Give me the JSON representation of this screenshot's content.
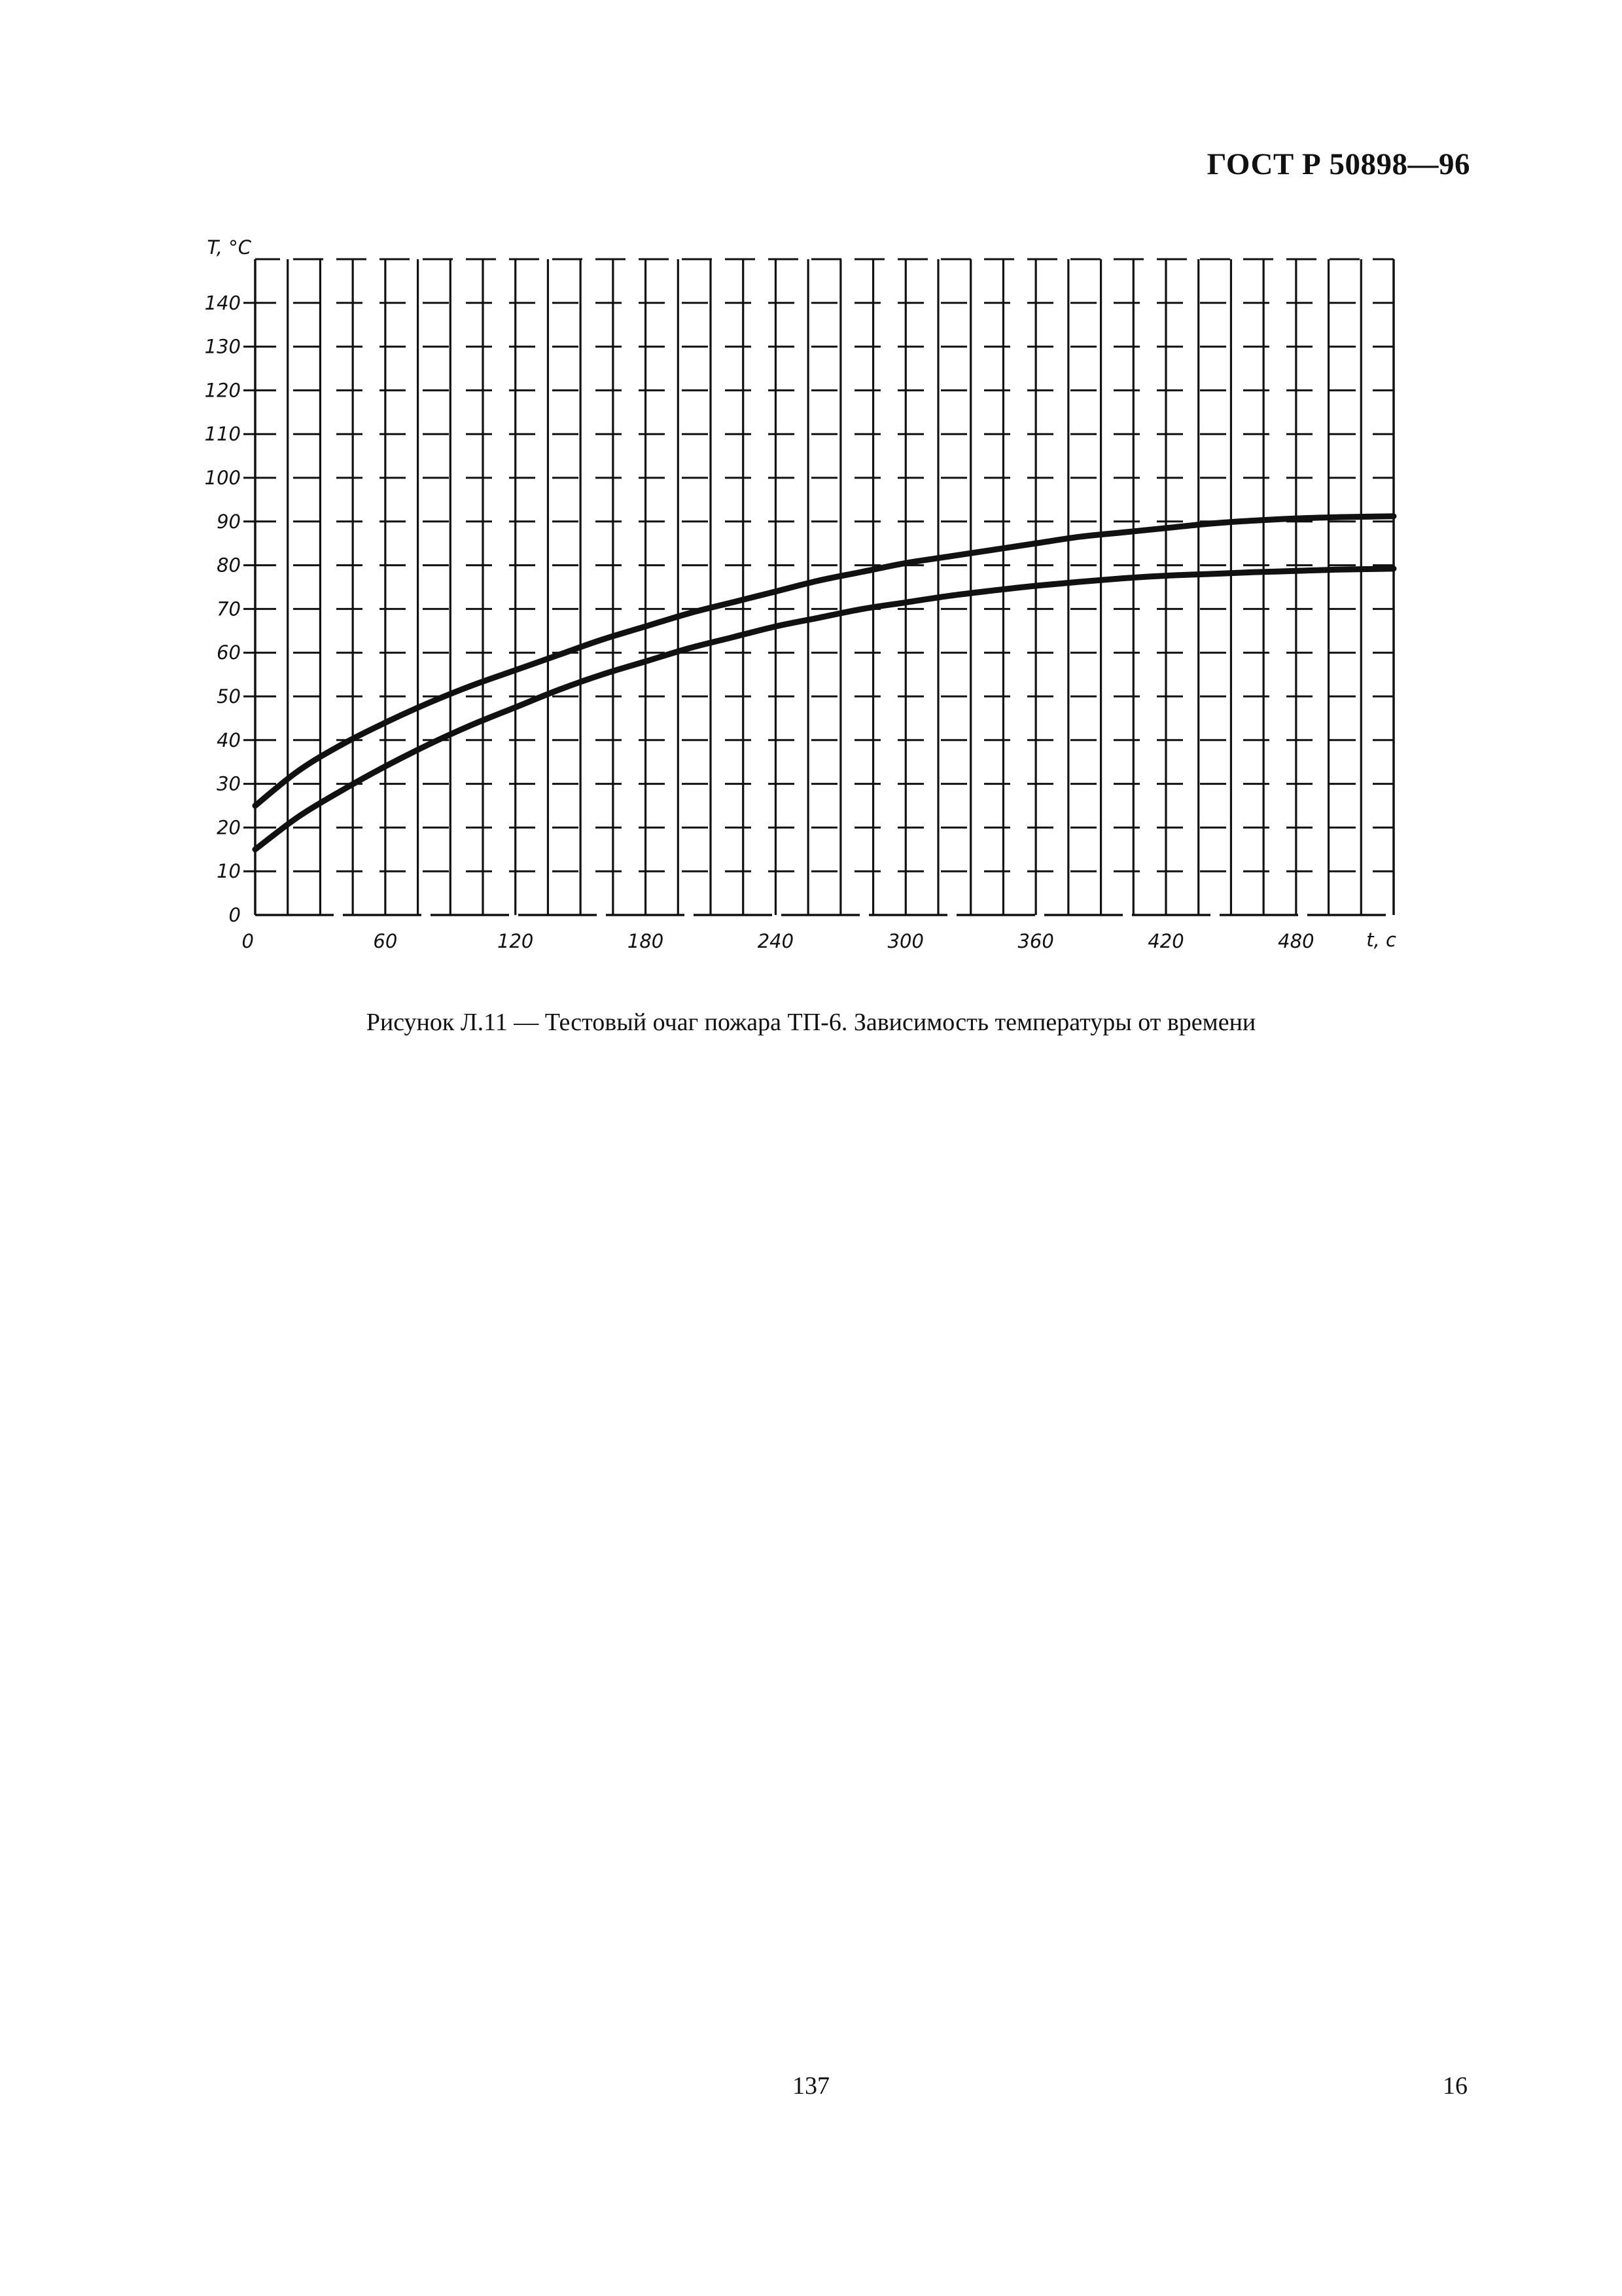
{
  "header": {
    "document_id": "ГОСТ Р 50898—96"
  },
  "figure": {
    "caption": "Рисунок Л.11 — Тестовый очаг пожара ТП-6. Зависимость температуры от времени"
  },
  "footer": {
    "page_center": "137",
    "page_right": "16"
  },
  "chart_data": {
    "type": "line",
    "title": "",
    "xlabel": "t, c",
    "ylabel": "T, °C",
    "xlim": [
      0,
      525
    ],
    "ylim": [
      0,
      150
    ],
    "x_ticks": [
      0,
      60,
      120,
      180,
      240,
      300,
      360,
      420,
      480
    ],
    "x_tick_labels": [
      "0",
      "60",
      "120",
      "180",
      "240",
      "300",
      "360",
      "420",
      "480"
    ],
    "y_ticks": [
      0,
      10,
      20,
      30,
      40,
      50,
      60,
      70,
      80,
      90,
      100,
      110,
      120,
      130,
      140
    ],
    "y_tick_labels": [
      "0",
      "10",
      "20",
      "30",
      "40",
      "50",
      "60",
      "70",
      "80",
      "90",
      "100",
      "110",
      "120",
      "130",
      "140"
    ],
    "grid": true,
    "grid_style": "dashed",
    "line_color": "#111111",
    "series": [
      {
        "x": [
          0,
          20,
          40,
          60,
          80,
          100,
          120,
          140,
          160,
          180,
          200,
          220,
          240,
          260,
          280,
          300,
          320,
          340,
          360,
          380,
          400,
          420,
          440,
          460,
          480,
          500,
          525
        ],
        "y": [
          25,
          33,
          39,
          44,
          48.5,
          52.5,
          56,
          59.5,
          63,
          66,
          69,
          71.5,
          74,
          76.5,
          78.5,
          80.5,
          82,
          83.5,
          85,
          86.5,
          87.5,
          88.5,
          89.5,
          90.2,
          90.7,
          91,
          91.2
        ]
      },
      {
        "x": [
          0,
          20,
          40,
          60,
          80,
          100,
          120,
          140,
          160,
          180,
          200,
          220,
          240,
          260,
          280,
          300,
          320,
          340,
          360,
          380,
          400,
          420,
          440,
          460,
          480,
          500,
          525
        ],
        "y": [
          15,
          22.5,
          28.5,
          34,
          39,
          43.5,
          47.5,
          51.5,
          55,
          58,
          61,
          63.5,
          66,
          68,
          70,
          71.5,
          73,
          74.2,
          75.3,
          76.2,
          77,
          77.6,
          78,
          78.4,
          78.7,
          79,
          79.2
        ]
      }
    ]
  }
}
